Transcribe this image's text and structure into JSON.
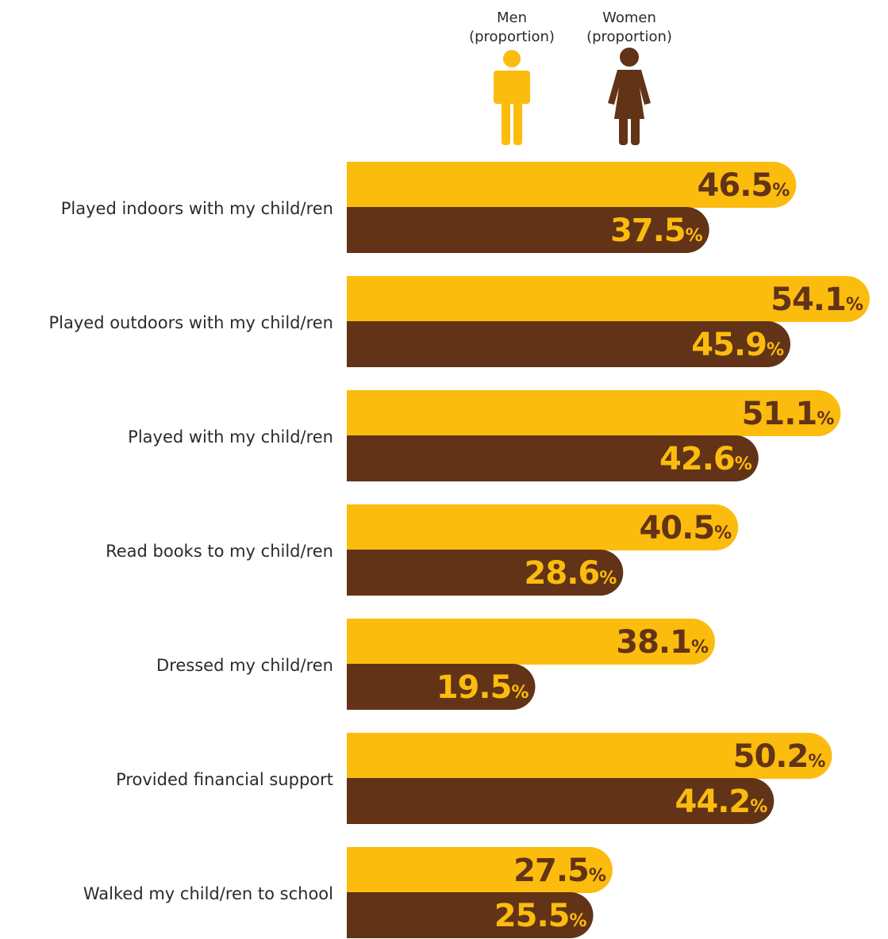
{
  "colors": {
    "men": "#FBBC0E",
    "women": "#623316",
    "men_value_text": "#623316",
    "women_value_text": "#FBBC0E"
  },
  "legend": {
    "men": {
      "line1": "Men",
      "line2": "(proportion)",
      "icon": "man-icon"
    },
    "women": {
      "line1": "Women",
      "line2": "(proportion)",
      "icon": "woman-icon"
    }
  },
  "chart_data": {
    "type": "bar",
    "orientation": "horizontal",
    "categories": [
      "Played indoors with my child/ren",
      "Played outdoors with my child/ren",
      "Played with my child/ren",
      "Read books to my child/ren",
      "Dressed my child/ren",
      "Provided financial support",
      "Walked my child/ren to school"
    ],
    "series": [
      {
        "name": "Men (proportion)",
        "values": [
          46.5,
          54.1,
          51.1,
          40.5,
          38.1,
          50.2,
          27.5
        ]
      },
      {
        "name": "Women (proportion)",
        "values": [
          37.5,
          45.9,
          42.6,
          28.6,
          19.5,
          44.2,
          25.5
        ]
      }
    ],
    "value_labels": {
      "men": [
        "46.5",
        "54.1",
        "51.1",
        "40.5",
        "38.1",
        "50.2",
        "27.5"
      ],
      "women": [
        "37.5",
        "45.9",
        "42.6",
        "28.6",
        "19.5",
        "44.2",
        "25.5"
      ]
    },
    "value_suffix": "%",
    "xlim": [
      0,
      56
    ],
    "grid": false,
    "legend_position": "top"
  }
}
